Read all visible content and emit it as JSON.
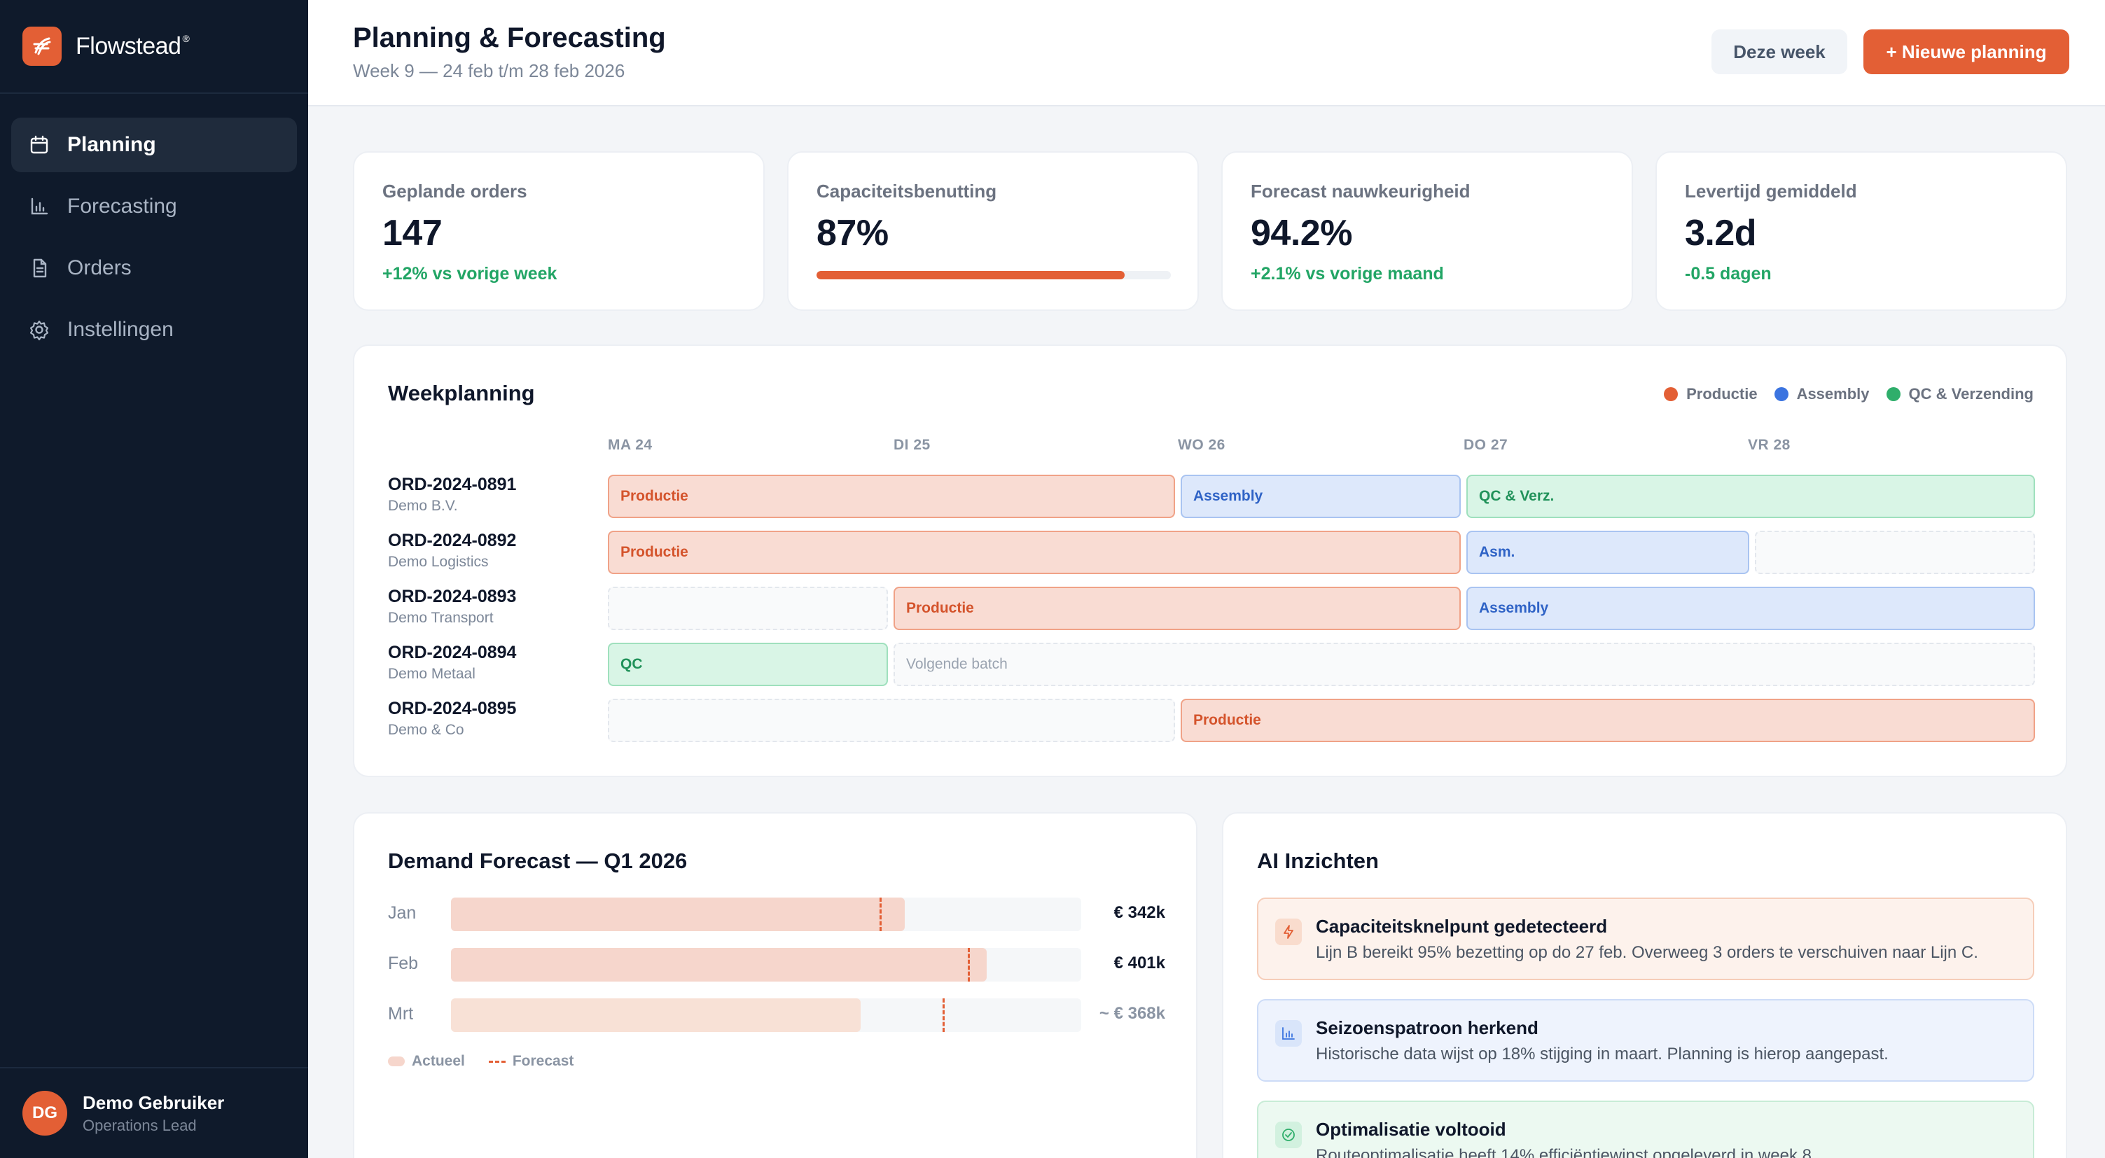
{
  "app": {
    "name": "Flowstead",
    "trademark": "®"
  },
  "sidebar": {
    "items": [
      {
        "label": "Planning",
        "icon": "calendar-icon",
        "active": true
      },
      {
        "label": "Forecasting",
        "icon": "bar-chart-icon",
        "active": false
      },
      {
        "label": "Orders",
        "icon": "document-icon",
        "active": false
      },
      {
        "label": "Instellingen",
        "icon": "gear-icon",
        "active": false
      }
    ]
  },
  "user": {
    "initials": "DG",
    "name": "Demo Gebruiker",
    "role": "Operations Lead"
  },
  "header": {
    "title": "Planning & Forecasting",
    "subtitle": "Week 9 — 24 feb t/m 28 feb 2026",
    "week_button": "Deze week",
    "new_button": "+ Nieuwe planning"
  },
  "kpis": [
    {
      "label": "Geplande orders",
      "value": "147",
      "delta": "+12% vs vorige week"
    },
    {
      "label": "Capaciteitsbenutting",
      "value": "87%",
      "progress": 0.87
    },
    {
      "label": "Forecast nauwkeurigheid",
      "value": "94.2%",
      "delta": "+2.1% vs vorige maand"
    },
    {
      "label": "Levertijd gemiddeld",
      "value": "3.2d",
      "delta": "-0.5 dagen"
    }
  ],
  "weekplanning": {
    "title": "Weekplanning",
    "legend": [
      {
        "label": "Productie",
        "color": "#e35f35"
      },
      {
        "label": "Assembly",
        "color": "#3b74e0"
      },
      {
        "label": "QC & Verzending",
        "color": "#2fae6b"
      }
    ],
    "days": [
      "MA 24",
      "DI 25",
      "WO 26",
      "DO 27",
      "VR 28"
    ],
    "rows": [
      {
        "id": "ORD-2024-0891",
        "customer": "Demo B.V.",
        "tasks": [
          {
            "label": "Productie",
            "kind": "prod"
          },
          {
            "label": "Assembly",
            "kind": "asm"
          },
          {
            "label": "QC & Verz.",
            "kind": "qc"
          }
        ]
      },
      {
        "id": "ORD-2024-0892",
        "customer": "Demo Logistics",
        "tasks": [
          {
            "label": "Productie",
            "kind": "prod"
          },
          {
            "label": "Asm.",
            "kind": "asm"
          },
          {
            "label": "",
            "kind": "empty"
          }
        ]
      },
      {
        "id": "ORD-2024-0893",
        "customer": "Demo Transport",
        "tasks": [
          {
            "label": "",
            "kind": "empty"
          },
          {
            "label": "Productie",
            "kind": "prod"
          },
          {
            "label": "Assembly",
            "kind": "asm"
          }
        ]
      },
      {
        "id": "ORD-2024-0894",
        "customer": "Demo Metaal",
        "tasks": [
          {
            "label": "QC",
            "kind": "qc"
          },
          {
            "label": "Volgende batch",
            "kind": "empty"
          }
        ]
      },
      {
        "id": "ORD-2024-0895",
        "customer": "Demo & Co",
        "tasks": [
          {
            "label": "",
            "kind": "empty"
          },
          {
            "label": "Productie",
            "kind": "prod"
          }
        ]
      }
    ]
  },
  "demand": {
    "title": "Demand Forecast — Q1 2026",
    "months": [
      {
        "label": "Jan",
        "amount": "€ 342k",
        "actual": 0.72,
        "forecast": 0.68,
        "projected": false
      },
      {
        "label": "Feb",
        "amount": "€ 401k",
        "actual": 0.85,
        "forecast": 0.82,
        "projected": false
      },
      {
        "label": "Mrt",
        "amount": "~ € 368k",
        "actual": 0.65,
        "forecast": 0.78,
        "projected": true
      }
    ],
    "legend_actual": "Actueel",
    "legend_forecast": "Forecast",
    "colors": {
      "actual": "#f6d6cc",
      "projected": "#f8e1d6",
      "forecast": "#e35f35"
    }
  },
  "ai": {
    "title": "AI Inzichten",
    "insights": [
      {
        "kind": "warn",
        "icon": "lightning-icon",
        "title": "Capaciteitsknelpunt gedetecteerd",
        "text": "Lijn B bereikt 95% bezetting op do 27 feb. Overweeg 3 orders te verschuiven naar Lijn C."
      },
      {
        "kind": "info",
        "icon": "chart-icon",
        "title": "Seizoenspatroon herkend",
        "text": "Historische data wijst op 18% stijging in maart. Planning is hierop aangepast."
      },
      {
        "kind": "ok",
        "icon": "check-icon",
        "title": "Optimalisatie voltooid",
        "text": "Routeoptimalisatie heeft 14% efficiëntiewinst opgeleverd in week 8."
      }
    ]
  }
}
